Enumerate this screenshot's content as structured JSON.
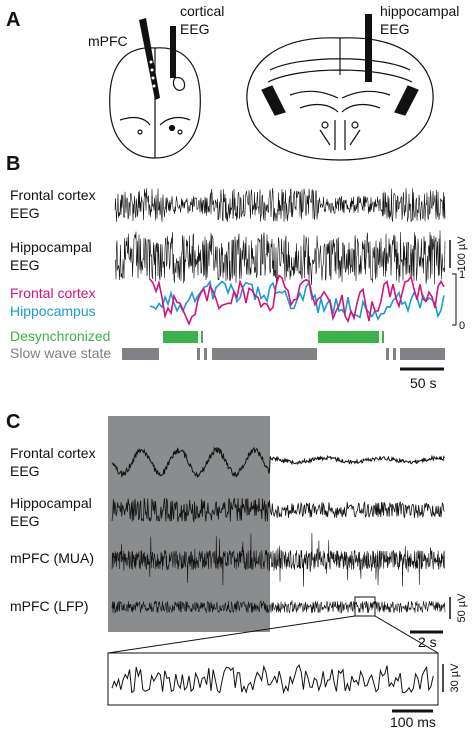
{
  "panel_a": {
    "label": "A",
    "mpfc": "mPFC",
    "cortical_eeg": [
      "cortical",
      "EEG"
    ],
    "hippocampal_eeg": [
      "hippocampal",
      "EEG"
    ]
  },
  "panel_b": {
    "label": "B",
    "traces": [
      [
        "Frontal cortex",
        "EEG"
      ],
      [
        "Hippocampal",
        "EEG"
      ]
    ],
    "scale_voltage": "100 µV",
    "coherence_legend": [
      "Frontal cortex",
      "Hippocampus"
    ],
    "coherence_axis": [
      "1",
      "0"
    ],
    "state_legend": [
      "Desynchronized",
      "Slow wave state"
    ],
    "scale_time": "50 s"
  },
  "panel_c": {
    "label": "C",
    "traces": [
      [
        "Frontal cortex",
        "EEG"
      ],
      [
        "Hippocampal",
        "EEG"
      ],
      [
        "mPFC (MUA)"
      ],
      [
        "mPFC (LFP)"
      ]
    ],
    "scale_voltage": "50 µV",
    "scale_time": "2 s",
    "inset_scale_voltage": "30 µV",
    "inset_scale_time": "100 ms"
  }
}
